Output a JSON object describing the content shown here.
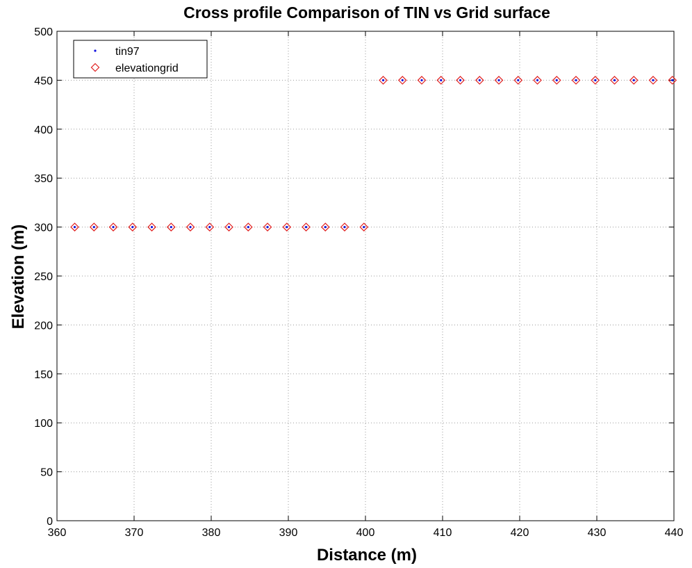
{
  "chart_data": {
    "type": "scatter",
    "title": "Cross profile Comparison of TIN vs Grid surface",
    "xlabel": "Distance (m)",
    "ylabel": "Elevation (m)",
    "xlim": [
      360,
      440
    ],
    "ylim": [
      0,
      500
    ],
    "xticks": [
      360,
      370,
      380,
      390,
      400,
      410,
      420,
      430,
      440
    ],
    "yticks": [
      0,
      50,
      100,
      150,
      200,
      250,
      300,
      350,
      400,
      450,
      500
    ],
    "grid": true,
    "grid_style": "dotted",
    "legend_position": "top-left",
    "series": [
      {
        "name": "tin97",
        "marker": "point",
        "color": "#1010e0",
        "x": [
          362.3,
          364.8,
          367.3,
          369.8,
          372.3,
          374.8,
          377.3,
          379.8,
          382.3,
          384.8,
          387.3,
          389.8,
          392.3,
          394.8,
          397.3,
          399.8,
          402.3,
          404.8,
          407.3,
          409.8,
          412.3,
          414.8,
          417.3,
          419.8,
          422.3,
          424.8,
          427.3,
          429.8,
          432.3,
          434.8,
          437.3,
          439.8
        ],
        "y": [
          300,
          300,
          300,
          300,
          300,
          300,
          300,
          300,
          300,
          300,
          300,
          300,
          300,
          300,
          300,
          300,
          450,
          450,
          450,
          450,
          450,
          450,
          450,
          450,
          450,
          450,
          450,
          450,
          450,
          450,
          450,
          450
        ]
      },
      {
        "name": "elevationgrid",
        "marker": "diamond",
        "color": "#e02020",
        "x": [
          362.3,
          364.8,
          367.3,
          369.8,
          372.3,
          374.8,
          377.3,
          379.8,
          382.3,
          384.8,
          387.3,
          389.8,
          392.3,
          394.8,
          397.3,
          399.8,
          402.3,
          404.8,
          407.3,
          409.8,
          412.3,
          414.8,
          417.3,
          419.8,
          422.3,
          424.8,
          427.3,
          429.8,
          432.3,
          434.8,
          437.3,
          439.8
        ],
        "y": [
          300,
          300,
          300,
          300,
          300,
          300,
          300,
          300,
          300,
          300,
          300,
          300,
          300,
          300,
          300,
          300,
          450,
          450,
          450,
          450,
          450,
          450,
          450,
          450,
          450,
          450,
          450,
          450,
          450,
          450,
          450,
          450
        ]
      }
    ]
  }
}
